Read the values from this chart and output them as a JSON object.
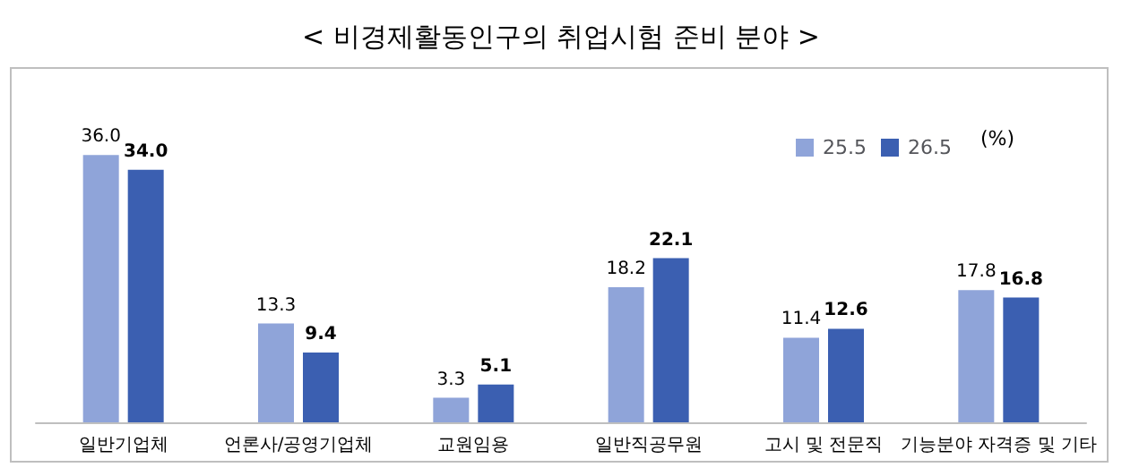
{
  "chart_data": {
    "type": "bar",
    "title": "< 비경제활동인구의 취업시험 준비 분야 >",
    "categories": [
      "일반기업체",
      "언론사/공영기업체",
      "교원임용",
      "일반직공무원",
      "고시 및 전문직",
      "기능분야 자격증 및 기타"
    ],
    "series": [
      {
        "name": "25.5",
        "color": "#8fa4d9",
        "values": [
          36.0,
          13.3,
          3.3,
          18.2,
          11.4,
          17.8
        ],
        "value_labels": [
          "36.0",
          "13.3",
          "3.3",
          "18.2",
          "11.4",
          "17.8"
        ]
      },
      {
        "name": "26.5",
        "color": "#3b5fb1",
        "values": [
          34.0,
          9.4,
          5.1,
          22.1,
          12.6,
          16.8
        ],
        "value_labels": [
          "34.0",
          "9.4",
          "5.1",
          "22.1",
          "12.6",
          "16.8"
        ]
      }
    ],
    "legend": "top right",
    "annotations": [
      "(%)"
    ]
  }
}
